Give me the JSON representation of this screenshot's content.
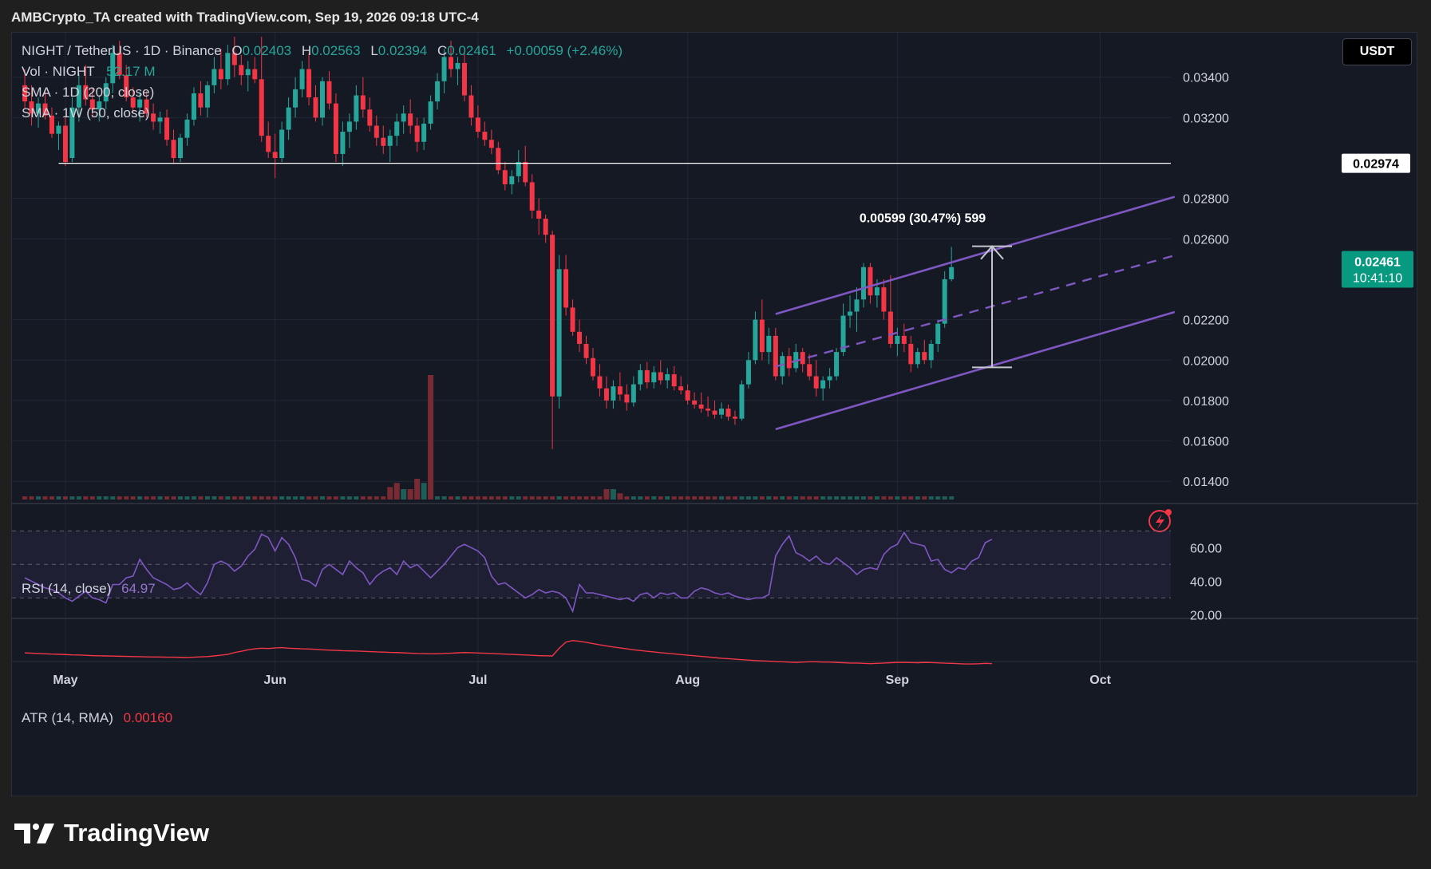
{
  "header": {
    "caption": "AMBCrypto_TA created with TradingView.com, Sep 19, 2026 09:18 UTC-4"
  },
  "legend": {
    "symbol": "NIGHT / TetherUS · 1D · Binance",
    "ohlc": [
      {
        "key": "O",
        "value": "0.02403"
      },
      {
        "key": "H",
        "value": "0.02563"
      },
      {
        "key": "L",
        "value": "0.02394"
      },
      {
        "key": "C",
        "value": "0.02461"
      }
    ],
    "change": "+0.00059 (+2.46%)",
    "vol_label": "Vol · NIGHT",
    "vol_value": "52.17 M",
    "sma1": "SMA · 1D (200, close)",
    "sma2": "SMA · 1W (50, close)",
    "rsi_label": "RSI (14, close)",
    "rsi_value": "64.97",
    "atr_label": "ATR (14, RMA)",
    "atr_value": "0.00160"
  },
  "toolbar": {
    "currency": "USDT"
  },
  "price_axis": {
    "ticks": [
      "0.03400",
      "0.03200",
      "0.02800",
      "0.02600",
      "0.02200",
      "0.02000",
      "0.01800",
      "0.01600",
      "0.01400"
    ],
    "hline_label": "0.02974",
    "last_price": "0.02461",
    "countdown": "10:41:10"
  },
  "rsi_axis": {
    "ticks": [
      "60.00",
      "40.00",
      "20.00"
    ]
  },
  "time_axis": {
    "ticks": [
      "May",
      "Jun",
      "Jul",
      "Aug",
      "Sep",
      "Oct"
    ]
  },
  "measure_label": "0.00599 (30.47%) 599",
  "brand": {
    "name": "TradingView"
  },
  "colors": {
    "up": "#26a69a",
    "down": "#f23645",
    "channel": "#7e57c2",
    "rsi": "#7e57c2",
    "atr": "#f23645",
    "background": "#151924",
    "last_price_bg": "#089981"
  },
  "chart_data": {
    "type": "candlestick",
    "y_range": [
      0.0131,
      0.0362
    ],
    "x_range_days": [
      "2026-04-24",
      "2026-10-21"
    ],
    "date_start": "2026-04-25",
    "candles": [
      [
        0.0336,
        0.0344,
        0.0324,
        0.0328
      ],
      [
        0.0328,
        0.0336,
        0.0316,
        0.0322
      ],
      [
        0.0322,
        0.033,
        0.0315,
        0.0327
      ],
      [
        0.0327,
        0.0334,
        0.0319,
        0.0321
      ],
      [
        0.0321,
        0.0325,
        0.031,
        0.0312
      ],
      [
        0.0312,
        0.0318,
        0.0304,
        0.0316
      ],
      [
        0.0316,
        0.032,
        0.0296,
        0.0298
      ],
      [
        0.03,
        0.033,
        0.0298,
        0.0325
      ],
      [
        0.0325,
        0.0342,
        0.0318,
        0.0336
      ],
      [
        0.0336,
        0.0346,
        0.0326,
        0.0329
      ],
      [
        0.0329,
        0.0335,
        0.032,
        0.0324
      ],
      [
        0.0324,
        0.0331,
        0.0318,
        0.0328
      ],
      [
        0.0328,
        0.034,
        0.0324,
        0.0337
      ],
      [
        0.0337,
        0.0356,
        0.0332,
        0.0352
      ],
      [
        0.0352,
        0.0358,
        0.0339,
        0.0341
      ],
      [
        0.0341,
        0.0346,
        0.0328,
        0.033
      ],
      [
        0.033,
        0.0335,
        0.0322,
        0.0325
      ],
      [
        0.0325,
        0.0332,
        0.0318,
        0.0329
      ],
      [
        0.0329,
        0.0333,
        0.032,
        0.0322
      ],
      [
        0.0322,
        0.0327,
        0.0314,
        0.0318
      ],
      [
        0.0318,
        0.0323,
        0.0312,
        0.032
      ],
      [
        0.032,
        0.0324,
        0.0306,
        0.0309
      ],
      [
        0.0309,
        0.0314,
        0.0297,
        0.03
      ],
      [
        0.03,
        0.0312,
        0.0298,
        0.031
      ],
      [
        0.031,
        0.0322,
        0.0306,
        0.0319
      ],
      [
        0.0319,
        0.0335,
        0.0316,
        0.0332
      ],
      [
        0.0332,
        0.0338,
        0.0321,
        0.0325
      ],
      [
        0.0325,
        0.0338,
        0.032,
        0.0336
      ],
      [
        0.0336,
        0.035,
        0.0332,
        0.0344
      ],
      [
        0.0344,
        0.0354,
        0.0334,
        0.0339
      ],
      [
        0.0339,
        0.0356,
        0.0336,
        0.0352
      ],
      [
        0.0352,
        0.036,
        0.034,
        0.0346
      ],
      [
        0.0346,
        0.0351,
        0.0336,
        0.0341
      ],
      [
        0.0341,
        0.0348,
        0.0333,
        0.0344
      ],
      [
        0.0344,
        0.035,
        0.0337,
        0.0339
      ],
      [
        0.0339,
        0.036,
        0.0308,
        0.0311
      ],
      [
        0.0311,
        0.0318,
        0.03,
        0.0303
      ],
      [
        0.0303,
        0.0312,
        0.029,
        0.03
      ],
      [
        0.03,
        0.0318,
        0.0298,
        0.0314
      ],
      [
        0.0314,
        0.033,
        0.0309,
        0.0325
      ],
      [
        0.0325,
        0.034,
        0.032,
        0.0334
      ],
      [
        0.0334,
        0.0348,
        0.033,
        0.0344
      ],
      [
        0.0344,
        0.0352,
        0.0326,
        0.033
      ],
      [
        0.033,
        0.0336,
        0.0318,
        0.032
      ],
      [
        0.032,
        0.034,
        0.0316,
        0.0338
      ],
      [
        0.0338,
        0.0343,
        0.0324,
        0.0327
      ],
      [
        0.0327,
        0.0332,
        0.0298,
        0.0302
      ],
      [
        0.0302,
        0.0318,
        0.0296,
        0.0313
      ],
      [
        0.0313,
        0.0322,
        0.0305,
        0.0318
      ],
      [
        0.0318,
        0.0336,
        0.0314,
        0.0331
      ],
      [
        0.0331,
        0.034,
        0.032,
        0.0324
      ],
      [
        0.0324,
        0.033,
        0.0313,
        0.0316
      ],
      [
        0.0316,
        0.0321,
        0.0306,
        0.031
      ],
      [
        0.031,
        0.0316,
        0.0302,
        0.0306
      ],
      [
        0.0306,
        0.0314,
        0.0298,
        0.0311
      ],
      [
        0.0311,
        0.0322,
        0.0306,
        0.0318
      ],
      [
        0.0318,
        0.0326,
        0.0312,
        0.0322
      ],
      [
        0.0322,
        0.0329,
        0.0312,
        0.0316
      ],
      [
        0.0316,
        0.032,
        0.0303,
        0.0308
      ],
      [
        0.0308,
        0.032,
        0.0304,
        0.0317
      ],
      [
        0.0317,
        0.0331,
        0.0314,
        0.0328
      ],
      [
        0.0328,
        0.0342,
        0.0324,
        0.0338
      ],
      [
        0.0338,
        0.0354,
        0.0332,
        0.035
      ],
      [
        0.035,
        0.0358,
        0.034,
        0.0344
      ],
      [
        0.0344,
        0.035,
        0.0336,
        0.0347
      ],
      [
        0.0347,
        0.0352,
        0.0328,
        0.0331
      ],
      [
        0.0331,
        0.0336,
        0.0316,
        0.032
      ],
      [
        0.032,
        0.0326,
        0.031,
        0.0313
      ],
      [
        0.0313,
        0.0318,
        0.0306,
        0.0309
      ],
      [
        0.0309,
        0.0314,
        0.0302,
        0.0305
      ],
      [
        0.0305,
        0.0308,
        0.0292,
        0.0294
      ],
      [
        0.0294,
        0.0298,
        0.0284,
        0.0287
      ],
      [
        0.0287,
        0.0294,
        0.0282,
        0.0291
      ],
      [
        0.0291,
        0.0304,
        0.0288,
        0.0298
      ],
      [
        0.0298,
        0.0306,
        0.0286,
        0.0288
      ],
      [
        0.0288,
        0.0292,
        0.027,
        0.0274
      ],
      [
        0.0274,
        0.028,
        0.0262,
        0.027
      ],
      [
        0.027,
        0.0272,
        0.0258,
        0.0262
      ],
      [
        0.0262,
        0.0264,
        0.0156,
        0.0182
      ],
      [
        0.0182,
        0.0252,
        0.0176,
        0.0245
      ],
      [
        0.0245,
        0.0252,
        0.0222,
        0.0226
      ],
      [
        0.0226,
        0.023,
        0.0212,
        0.0214
      ],
      [
        0.0214,
        0.022,
        0.0204,
        0.0208
      ],
      [
        0.0208,
        0.0212,
        0.0198,
        0.0201
      ],
      [
        0.0201,
        0.0206,
        0.019,
        0.0192
      ],
      [
        0.0192,
        0.0198,
        0.0182,
        0.0186
      ],
      [
        0.0186,
        0.0192,
        0.0176,
        0.018
      ],
      [
        0.018,
        0.019,
        0.0176,
        0.0187
      ],
      [
        0.0187,
        0.0194,
        0.018,
        0.0183
      ],
      [
        0.0183,
        0.0188,
        0.0175,
        0.0179
      ],
      [
        0.0179,
        0.0192,
        0.0177,
        0.0188
      ],
      [
        0.0188,
        0.0198,
        0.0185,
        0.0195
      ],
      [
        0.0195,
        0.0199,
        0.0186,
        0.0189
      ],
      [
        0.0189,
        0.0197,
        0.0186,
        0.0194
      ],
      [
        0.0194,
        0.02,
        0.0188,
        0.019
      ],
      [
        0.019,
        0.0196,
        0.0186,
        0.0193
      ],
      [
        0.0193,
        0.0197,
        0.0185,
        0.0187
      ],
      [
        0.0187,
        0.0192,
        0.0183,
        0.0185
      ],
      [
        0.0185,
        0.0188,
        0.0178,
        0.018
      ],
      [
        0.018,
        0.0184,
        0.0176,
        0.0178
      ],
      [
        0.0178,
        0.0184,
        0.0174,
        0.0176
      ],
      [
        0.0176,
        0.0182,
        0.0172,
        0.0175
      ],
      [
        0.0175,
        0.018,
        0.0171,
        0.0173
      ],
      [
        0.0173,
        0.0179,
        0.0171,
        0.0176
      ],
      [
        0.0176,
        0.0178,
        0.017,
        0.0172
      ],
      [
        0.0172,
        0.0175,
        0.0168,
        0.0171
      ],
      [
        0.0171,
        0.019,
        0.017,
        0.0188
      ],
      [
        0.0188,
        0.0204,
        0.0186,
        0.02
      ],
      [
        0.02,
        0.0224,
        0.0198,
        0.022
      ],
      [
        0.022,
        0.023,
        0.02,
        0.0204
      ],
      [
        0.0204,
        0.0216,
        0.0198,
        0.0212
      ],
      [
        0.0212,
        0.0216,
        0.019,
        0.0192
      ],
      [
        0.0192,
        0.0204,
        0.0188,
        0.0202
      ],
      [
        0.0202,
        0.0206,
        0.0192,
        0.0196
      ],
      [
        0.0196,
        0.0208,
        0.0194,
        0.0204
      ],
      [
        0.0204,
        0.0206,
        0.0194,
        0.0198
      ],
      [
        0.0198,
        0.0203,
        0.019,
        0.0192
      ],
      [
        0.0192,
        0.02,
        0.0182,
        0.0186
      ],
      [
        0.0186,
        0.0192,
        0.018,
        0.019
      ],
      [
        0.019,
        0.0196,
        0.0186,
        0.0192
      ],
      [
        0.0192,
        0.0206,
        0.019,
        0.0204
      ],
      [
        0.0204,
        0.0228,
        0.0202,
        0.0222
      ],
      [
        0.0222,
        0.0232,
        0.0216,
        0.0224
      ],
      [
        0.0224,
        0.0236,
        0.0214,
        0.023
      ],
      [
        0.023,
        0.0248,
        0.0226,
        0.0246
      ],
      [
        0.0246,
        0.0248,
        0.0228,
        0.0232
      ],
      [
        0.0232,
        0.024,
        0.0226,
        0.0236
      ],
      [
        0.0236,
        0.024,
        0.022,
        0.0224
      ],
      [
        0.0224,
        0.0242,
        0.0206,
        0.0208
      ],
      [
        0.0208,
        0.0216,
        0.0202,
        0.0212
      ],
      [
        0.0212,
        0.0218,
        0.0204,
        0.0208
      ],
      [
        0.0208,
        0.0212,
        0.0194,
        0.0198
      ],
      [
        0.0198,
        0.0206,
        0.0196,
        0.0204
      ],
      [
        0.0204,
        0.021,
        0.0198,
        0.02
      ],
      [
        0.02,
        0.021,
        0.0196,
        0.0208
      ],
      [
        0.0208,
        0.022,
        0.0204,
        0.0218
      ],
      [
        0.0218,
        0.0244,
        0.0216,
        0.024
      ],
      [
        0.024,
        0.0256,
        0.0239,
        0.0246
      ]
    ],
    "volume_spikes": [
      {
        "date": "2026-06-18",
        "value": 0.06,
        "up": false
      },
      {
        "date": "2026-06-19",
        "value": 0.08,
        "up": false
      },
      {
        "date": "2026-06-20",
        "value": 0.05,
        "up": true
      },
      {
        "date": "2026-06-21",
        "value": 0.05,
        "up": false
      },
      {
        "date": "2026-06-22",
        "value": 0.1,
        "up": false
      },
      {
        "date": "2026-06-23",
        "value": 0.08,
        "up": true
      },
      {
        "date": "2026-06-24",
        "value": 0.6,
        "up": false
      },
      {
        "date": "2026-07-20",
        "value": 0.05,
        "up": false
      },
      {
        "date": "2026-07-21",
        "value": 0.05,
        "up": true
      },
      {
        "date": "2026-07-22",
        "value": 0.03,
        "up": false
      }
    ],
    "horizontal_line": 0.02974,
    "channel": {
      "upper": [
        [
          "2026-08-14",
          0.02228
        ],
        [
          "2026-10-12",
          0.02808
        ]
      ],
      "middle": [
        [
          "2026-08-14",
          0.01968
        ],
        [
          "2026-10-12",
          0.02518
        ]
      ],
      "lower": [
        [
          "2026-08-14",
          0.01658
        ],
        [
          "2026-10-12",
          0.02238
        ]
      ]
    },
    "measure": {
      "date": "2026-09-15",
      "from": 0.01964,
      "to": 0.02563
    },
    "rsi": {
      "y_range": [
        13,
        73
      ],
      "levels": [
        70,
        50,
        30
      ],
      "values": [
        42,
        40,
        38,
        36,
        35,
        33,
        30,
        28,
        31,
        34,
        30,
        29,
        27,
        38,
        38,
        42,
        43,
        53,
        47,
        42,
        40,
        38,
        35,
        36,
        39,
        35,
        32,
        39,
        50,
        52,
        50,
        46,
        49,
        55,
        59,
        68,
        66,
        58,
        66,
        62,
        54,
        41,
        40,
        37,
        47,
        50,
        47,
        44,
        52,
        48,
        45,
        38,
        43,
        46,
        48,
        44,
        52,
        48,
        50,
        46,
        42,
        46,
        50,
        55,
        60,
        62,
        60,
        58,
        54,
        43,
        38,
        39,
        36,
        33,
        30,
        32,
        35,
        33,
        34,
        33,
        30,
        22,
        38,
        33,
        33,
        32,
        31,
        30,
        29,
        30,
        28,
        32,
        33,
        30,
        33,
        32,
        33,
        30,
        30,
        34,
        36,
        35,
        33,
        32,
        33,
        31,
        30,
        29,
        30,
        30,
        32,
        55,
        62,
        67,
        57,
        55,
        52,
        55,
        51,
        50,
        54,
        51,
        48,
        44,
        47,
        48,
        47,
        56,
        60,
        62,
        69,
        63,
        62,
        61,
        52,
        53,
        47,
        45,
        48,
        47,
        52,
        54,
        63,
        65
      ]
    },
    "atr": {
      "y_range": [
        0.0006,
        0.0036
      ],
      "values": [
        0.0023,
        0.00228,
        0.00226,
        0.00224,
        0.00222,
        0.00221,
        0.00219,
        0.00217,
        0.00216,
        0.00214,
        0.00212,
        0.00211,
        0.0021,
        0.00209,
        0.00208,
        0.00207,
        0.00206,
        0.00205,
        0.00204,
        0.00203,
        0.00203,
        0.00202,
        0.00202,
        0.00201,
        0.002,
        0.00202,
        0.00204,
        0.00206,
        0.0021,
        0.00215,
        0.0022,
        0.00232,
        0.0024,
        0.0025,
        0.00256,
        0.0026,
        0.00258,
        0.00262,
        0.00264,
        0.0026,
        0.00258,
        0.00256,
        0.00255,
        0.00253,
        0.0025,
        0.00248,
        0.00246,
        0.00244,
        0.00243,
        0.00242,
        0.0024,
        0.00238,
        0.00236,
        0.00235,
        0.00233,
        0.00232,
        0.0023,
        0.00228,
        0.00226,
        0.00225,
        0.00224,
        0.00224,
        0.00226,
        0.00228,
        0.0023,
        0.00232,
        0.00231,
        0.00229,
        0.00228,
        0.00226,
        0.00224,
        0.00222,
        0.0022,
        0.00218,
        0.00216,
        0.00214,
        0.00212,
        0.00211,
        0.0021,
        0.0026,
        0.003,
        0.0031,
        0.00305,
        0.00298,
        0.0029,
        0.00282,
        0.00275,
        0.00268,
        0.00262,
        0.00256,
        0.0025,
        0.00245,
        0.0024,
        0.00236,
        0.00231,
        0.00227,
        0.00223,
        0.00219,
        0.00215,
        0.00211,
        0.00207,
        0.00203,
        0.00199,
        0.00195,
        0.00192,
        0.00189,
        0.00186,
        0.00183,
        0.0018,
        0.00178,
        0.00176,
        0.00174,
        0.00172,
        0.0017,
        0.00168,
        0.0017,
        0.00172,
        0.00172,
        0.0017,
        0.0017,
        0.00168,
        0.00166,
        0.00164,
        0.00164,
        0.00162,
        0.0016,
        0.00162,
        0.00164,
        0.00166,
        0.00168,
        0.00168,
        0.00167,
        0.00166,
        0.00168,
        0.00167,
        0.00165,
        0.00163,
        0.00162,
        0.0016,
        0.00158,
        0.00158,
        0.00159,
        0.00162,
        0.0016
      ]
    }
  }
}
